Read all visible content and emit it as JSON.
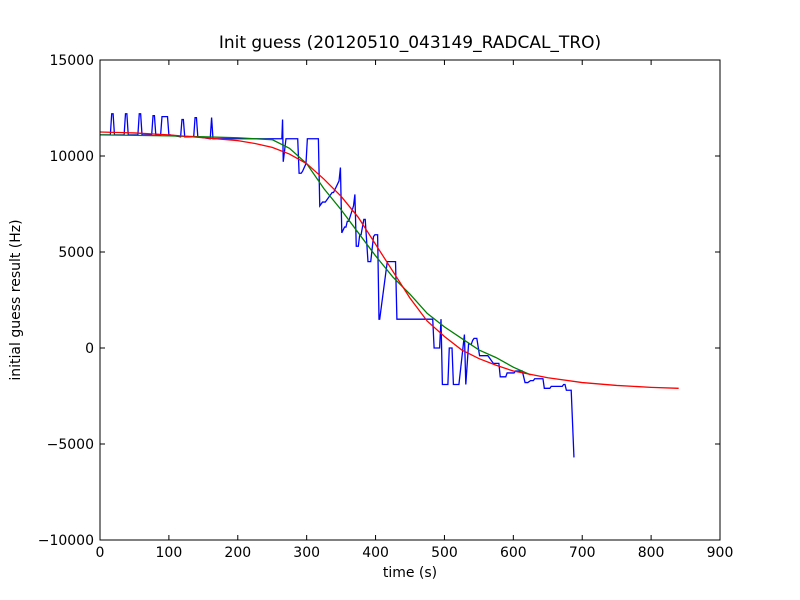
{
  "chart_data": {
    "type": "line",
    "title": "Init guess (20120510_043149_RADCAL_TRO)",
    "xlabel": "time (s)",
    "ylabel": "initial guess result (Hz)",
    "xlim": [
      0,
      900
    ],
    "ylim": [
      -10000,
      15000
    ],
    "xticks": [
      0,
      100,
      200,
      300,
      400,
      500,
      600,
      700,
      800,
      900
    ],
    "yticks": [
      -10000,
      -5000,
      0,
      5000,
      10000,
      15000
    ],
    "xtick_labels": [
      "0",
      "100",
      "200",
      "300",
      "400",
      "500",
      "600",
      "700",
      "800",
      "900"
    ],
    "ytick_labels": [
      "−10000",
      "−5000",
      "0",
      "5000",
      "10000",
      "15000"
    ],
    "grid": false,
    "legend": "none",
    "series": [
      {
        "color": "#0000ff",
        "x": [
          0,
          15,
          17,
          19,
          21,
          35,
          37,
          39,
          41,
          55,
          57,
          59,
          61,
          75,
          77,
          79,
          81,
          88,
          90,
          98,
          100,
          102,
          117,
          119,
          121,
          123,
          136,
          138,
          140,
          142,
          160,
          162,
          164,
          264,
          265,
          266,
          270,
          272,
          285,
          287,
          289,
          292,
          294,
          299,
          301,
          303,
          315,
          317,
          319,
          323,
          325,
          327,
          337,
          339,
          347,
          349,
          351,
          355,
          357,
          359,
          361,
          368,
          370,
          372,
          375,
          377,
          379,
          383,
          385,
          389,
          391,
          393,
          397,
          399,
          401,
          403,
          405,
          406,
          417,
          419,
          421,
          423,
          425,
          427,
          429,
          431,
          433,
          441,
          443,
          445,
          447,
          479,
          481,
          483,
          485,
          491,
          493,
          495,
          497,
          503,
          505,
          507,
          509,
          511,
          513,
          517,
          519,
          521,
          529,
          531,
          535,
          537,
          539,
          541,
          543,
          545,
          547,
          551,
          553,
          555,
          559,
          561,
          563,
          571,
          573,
          577,
          579,
          581,
          589,
          591,
          599,
          601,
          603,
          611,
          613,
          617,
          619,
          621,
          625,
          627,
          629,
          631,
          633,
          641,
          643,
          645,
          647,
          649,
          651,
          653,
          655,
          657,
          671,
          673,
          675,
          677,
          679,
          682,
          684,
          688
        ],
        "y": [
          11100,
          11100,
          12200,
          12200,
          11100,
          11100,
          12200,
          12200,
          11100,
          11100,
          12200,
          12200,
          11100,
          11100,
          12100,
          12100,
          11100,
          11100,
          12050,
          12050,
          11100,
          11100,
          11000,
          11900,
          11900,
          11000,
          11000,
          12000,
          12000,
          11000,
          10900,
          12000,
          10900,
          10900,
          11900,
          9700,
          10900,
          10900,
          10900,
          10900,
          9100,
          9100,
          9200,
          9600,
          10900,
          10900,
          10900,
          10900,
          7400,
          7600,
          7600,
          7600,
          8100,
          8100,
          8700,
          9400,
          6000,
          6300,
          6300,
          6600,
          6600,
          7400,
          8000,
          5300,
          5300,
          5900,
          5900,
          6700,
          6700,
          4500,
          4500,
          4500,
          5800,
          5900,
          5900,
          5900,
          1500,
          1500,
          4500,
          4500,
          4500,
          4500,
          4500,
          4500,
          4500,
          1500,
          1500,
          1500,
          1500,
          1500,
          1500,
          1500,
          1500,
          1500,
          0,
          0,
          0,
          1500,
          -1900,
          -1900,
          -1900,
          0,
          0,
          0,
          -1900,
          -1900,
          -1900,
          -1900,
          700,
          -1900,
          200,
          200,
          200,
          400,
          500,
          500,
          500,
          -400,
          -400,
          -400,
          -400,
          -400,
          -400,
          -800,
          -800,
          -800,
          -800,
          -1500,
          -1500,
          -1300,
          -1300,
          -1300,
          -1200,
          -1200,
          -1200,
          -1800,
          -1800,
          -1800,
          -1700,
          -1700,
          -1700,
          -1600,
          -1600,
          -1600,
          -1600,
          -2100,
          -2100,
          -2100,
          -2100,
          -2100,
          -2000,
          -2000,
          -2000,
          -1900,
          -1900,
          -2200,
          -2200,
          -2200,
          -2200,
          -5700
        ]
      },
      {
        "color": "#008000",
        "x": [
          0,
          100,
          150,
          200,
          250,
          275,
          300,
          325,
          350,
          375,
          400,
          425,
          450,
          475,
          500,
          525,
          550,
          575,
          600,
          625
        ],
        "y": [
          11100,
          11050,
          11000,
          10950,
          10850,
          10400,
          9600,
          8300,
          7200,
          6000,
          4800,
          3700,
          2800,
          1800,
          1100,
          500,
          -100,
          -500,
          -1000,
          -1400
        ]
      },
      {
        "color": "#ff0000",
        "x": [
          0,
          50,
          100,
          150,
          200,
          225,
          250,
          275,
          300,
          325,
          350,
          375,
          400,
          425,
          450,
          475,
          500,
          525,
          550,
          575,
          600,
          650,
          700,
          750,
          800,
          840
        ],
        "y": [
          11250,
          11200,
          11100,
          10950,
          10800,
          10650,
          10450,
          10100,
          9600,
          8800,
          7900,
          6800,
          5400,
          4000,
          2600,
          1400,
          600,
          -100,
          -550,
          -900,
          -1200,
          -1550,
          -1800,
          -1950,
          -2050,
          -2100
        ]
      }
    ]
  }
}
